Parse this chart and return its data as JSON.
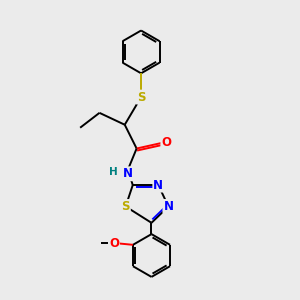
{
  "background_color": "#ebebeb",
  "atom_colors": {
    "C": "#000000",
    "H": "#008080",
    "N": "#0000ff",
    "O": "#ff0000",
    "S": "#bbaa00"
  },
  "figsize": [
    3.0,
    3.0
  ],
  "dpi": 100,
  "lw": 1.4,
  "fs": 7.5
}
